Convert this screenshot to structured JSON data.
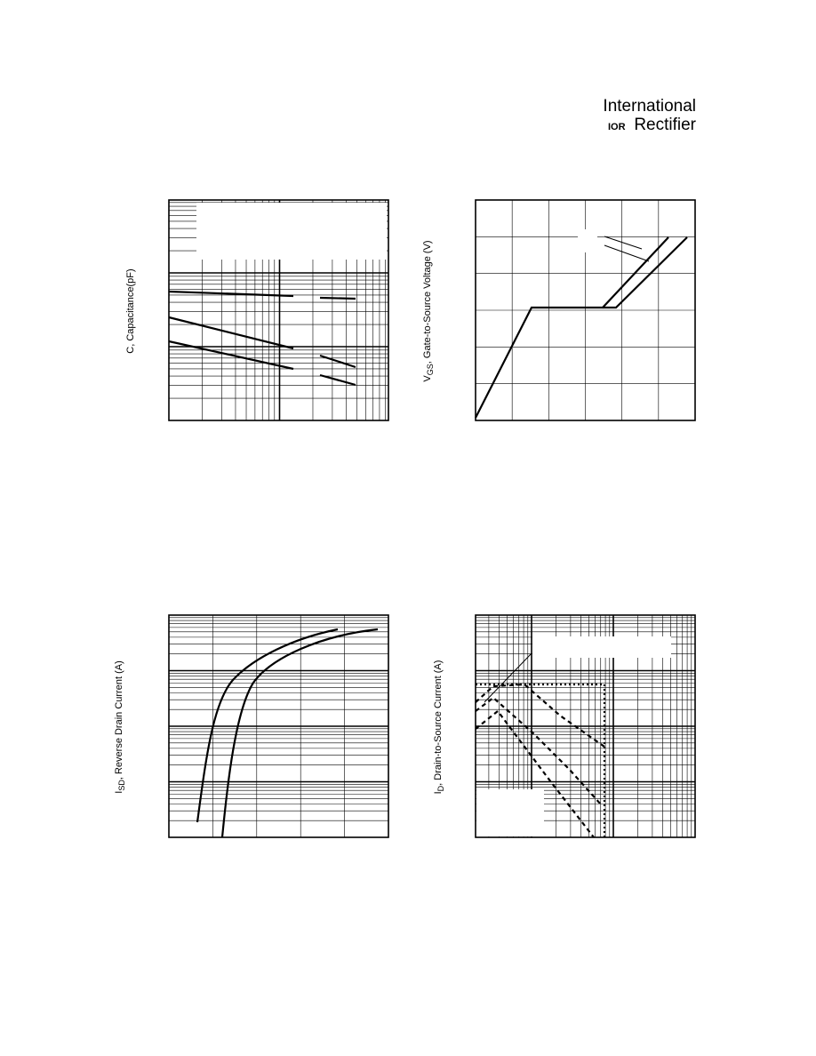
{
  "header": {
    "logo_line1": "International",
    "logo_mark": "IOR",
    "logo_line2": "Rectifier"
  },
  "charts": [
    {
      "ylabel": "C, Capacitance(pF)"
    },
    {
      "ylabel_main": "V",
      "ylabel_sub": "GS",
      "ylabel_rest": ", Gate-to-Source Voltage (V)"
    },
    {
      "ylabel_main": "I",
      "ylabel_sub": "SD",
      "ylabel_rest": ", Reverse Drain Current (A)"
    },
    {
      "ylabel_main": "I",
      "ylabel_sub": "D",
      "ylabel_rest": ", Drain-to-Source Current (A)"
    }
  ]
}
